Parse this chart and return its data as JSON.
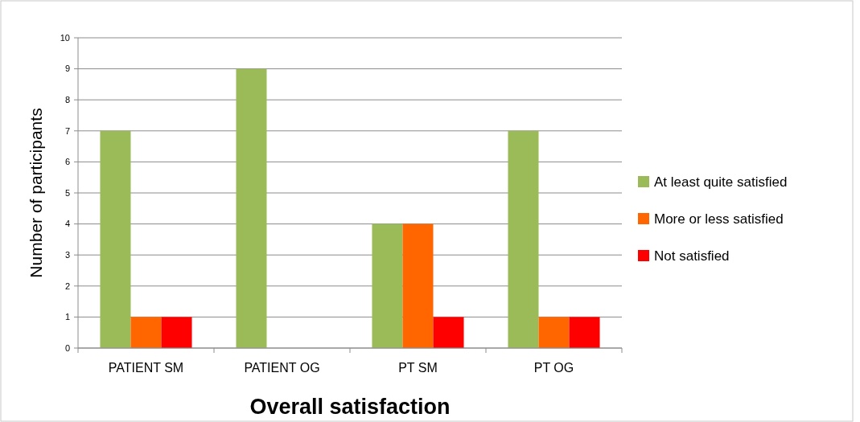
{
  "chart_data": {
    "type": "bar",
    "xlabel": "Overall satisfaction",
    "ylabel": "Number of participants",
    "categories": [
      "PATIENT SM",
      "PATIENT OG",
      "PT SM",
      "PT OG"
    ],
    "series": [
      {
        "name": "At least quite satisfied",
        "color": "#9bbb59",
        "values": [
          7,
          9,
          4,
          7
        ]
      },
      {
        "name": "More or less satisfied",
        "color": "#ff6600",
        "values": [
          1,
          0,
          4,
          1
        ]
      },
      {
        "name": "Not satisfied",
        "color": "#ff0000",
        "values": [
          1,
          0,
          1,
          1
        ]
      }
    ],
    "ylim": [
      0,
      10
    ],
    "yticks": [
      0,
      1,
      2,
      3,
      4,
      5,
      6,
      7,
      8,
      9,
      10
    ],
    "grid": "y",
    "legend": "right"
  }
}
